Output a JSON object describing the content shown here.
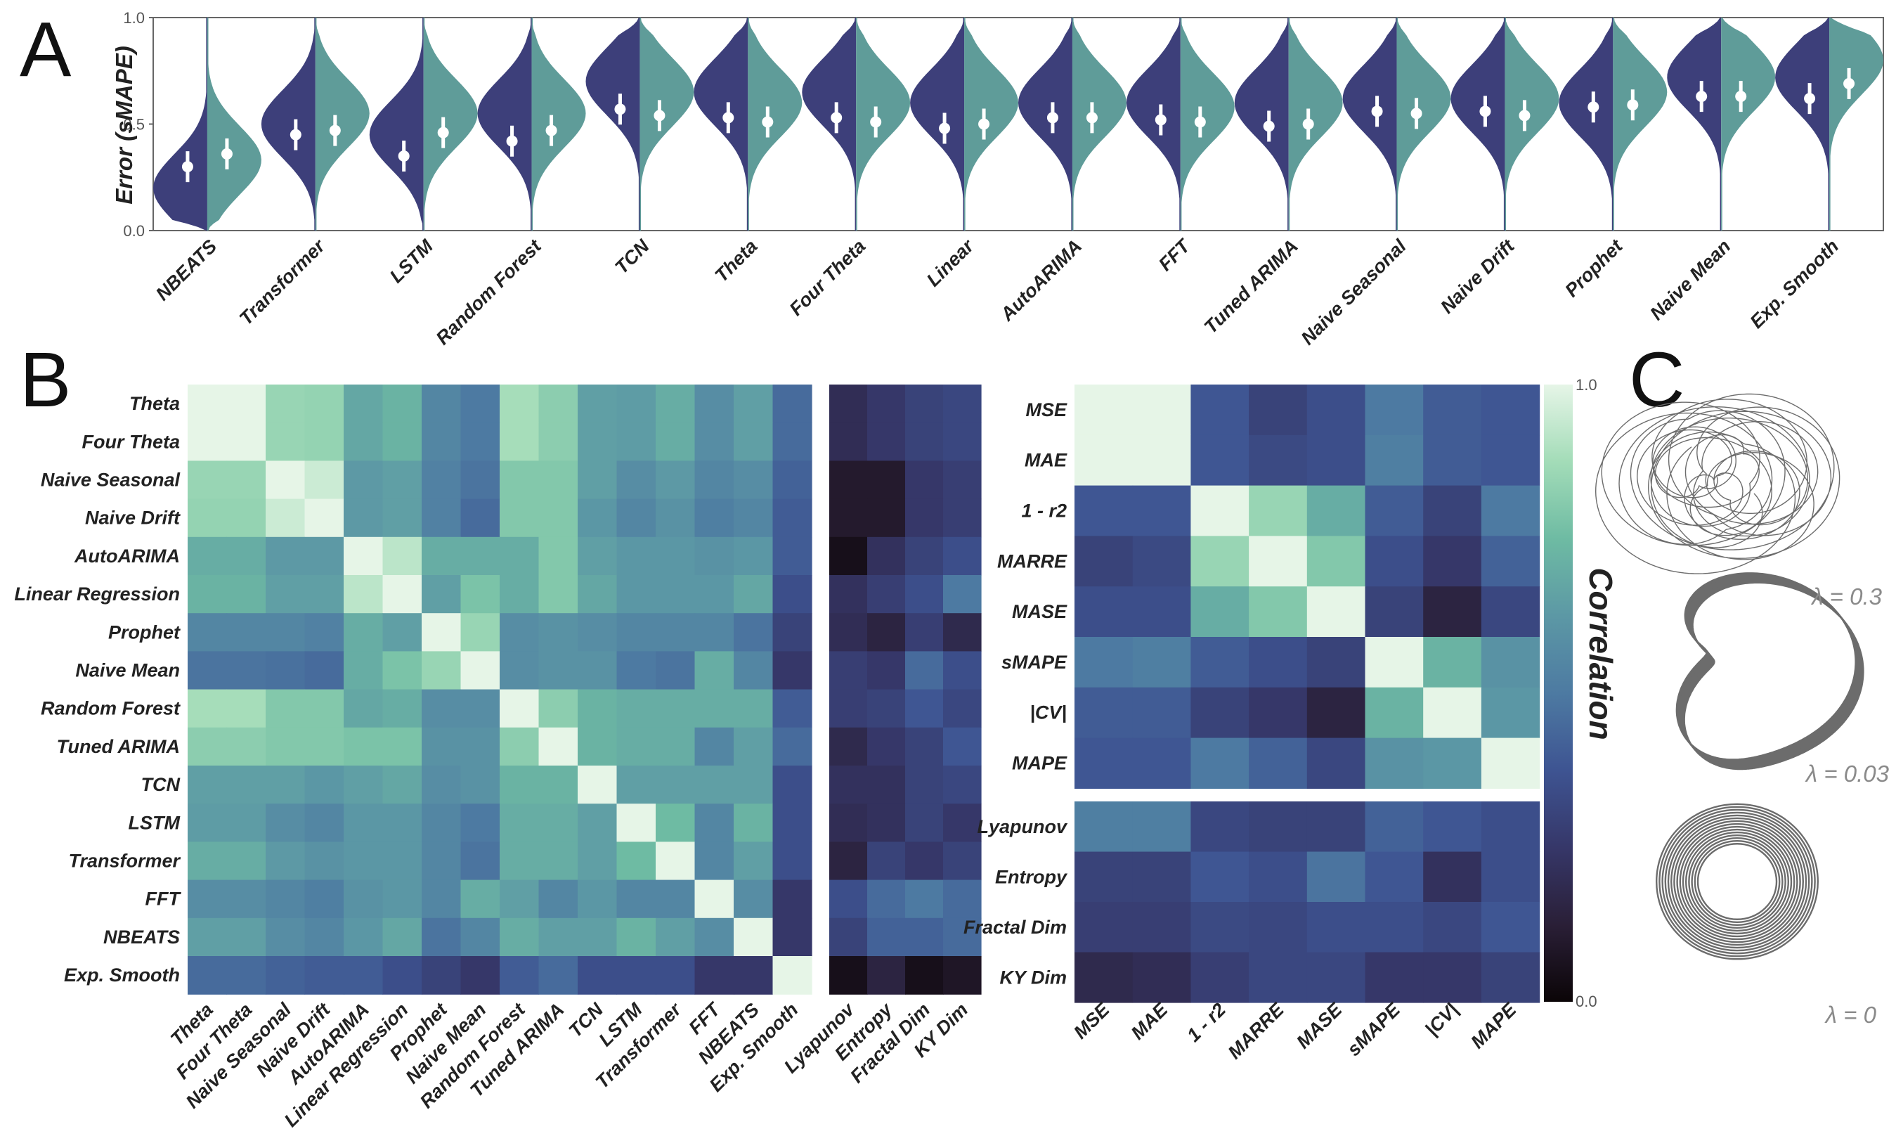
{
  "panels": {
    "a": "A",
    "b": "B",
    "c": "C"
  },
  "colors": {
    "left_violin": "#3d3f7a",
    "right_violin": "#5f9c99",
    "point": "#ffffff",
    "cmap": [
      "#0b0507",
      "#2a1f37",
      "#363769",
      "#3e5492",
      "#4d7aa2",
      "#5c98a5",
      "#6ebba3",
      "#a3dcb8",
      "#e6f5e7"
    ]
  },
  "violin": {
    "ylabel": "Error (sMAPE)",
    "ylim": [
      0.0,
      1.0
    ],
    "yticks": [
      "0.0",
      "0.5",
      "1.0"
    ],
    "models": [
      {
        "name": "NBEATS",
        "l": 0.3,
        "r": 0.36,
        "lp": 0.2,
        "rp": 0.33
      },
      {
        "name": "Transformer",
        "l": 0.45,
        "r": 0.47,
        "lp": 0.5,
        "rp": 0.55
      },
      {
        "name": "LSTM",
        "l": 0.35,
        "r": 0.46,
        "lp": 0.45,
        "rp": 0.55
      },
      {
        "name": "Random Forest",
        "l": 0.42,
        "r": 0.47,
        "lp": 0.55,
        "rp": 0.55
      },
      {
        "name": "TCN",
        "l": 0.57,
        "r": 0.54,
        "lp": 0.7,
        "rp": 0.65
      },
      {
        "name": "Theta",
        "l": 0.53,
        "r": 0.51,
        "lp": 0.65,
        "rp": 0.6
      },
      {
        "name": "Four Theta",
        "l": 0.53,
        "r": 0.51,
        "lp": 0.65,
        "rp": 0.6
      },
      {
        "name": "Linear",
        "l": 0.48,
        "r": 0.5,
        "lp": 0.6,
        "rp": 0.6
      },
      {
        "name": "AutoARIMA",
        "l": 0.53,
        "r": 0.53,
        "lp": 0.6,
        "rp": 0.6
      },
      {
        "name": "FFT",
        "l": 0.52,
        "r": 0.51,
        "lp": 0.6,
        "rp": 0.58
      },
      {
        "name": "Tuned ARIMA",
        "l": 0.49,
        "r": 0.5,
        "lp": 0.6,
        "rp": 0.6
      },
      {
        "name": "Naive Seasonal",
        "l": 0.56,
        "r": 0.55,
        "lp": 0.62,
        "rp": 0.62
      },
      {
        "name": "Naive Drift",
        "l": 0.56,
        "r": 0.54,
        "lp": 0.62,
        "rp": 0.62
      },
      {
        "name": "Prophet",
        "l": 0.58,
        "r": 0.59,
        "lp": 0.6,
        "rp": 0.65
      },
      {
        "name": "Naive Mean",
        "l": 0.63,
        "r": 0.63,
        "lp": 0.72,
        "rp": 0.72
      },
      {
        "name": "Exp. Smooth",
        "l": 0.62,
        "r": 0.69,
        "lp": 0.72,
        "rp": 0.8
      }
    ]
  },
  "heatmap_models": {
    "rows": [
      "Theta",
      "Four Theta",
      "Naive Seasonal",
      "Naive Drift",
      "AutoARIMA",
      "Linear Regression",
      "Prophet",
      "Naive Mean",
      "Random Forest",
      "Tuned ARIMA",
      "TCN",
      "LSTM",
      "Transformer",
      "FFT",
      "NBEATS",
      "Exp. Smooth"
    ],
    "cols": [
      "Theta",
      "Four Theta",
      "Naive Seasonal",
      "Naive Drift",
      "AutoARIMA",
      "Linear Regression",
      "Prophet",
      "Naive Mean",
      "Random Forest",
      "Tuned ARIMA",
      "TCN",
      "LSTM",
      "Transformer",
      "FFT",
      "NBEATS",
      "Exp. Smooth"
    ],
    "values": [
      [
        1.0,
        1.0,
        0.85,
        0.84,
        0.68,
        0.72,
        0.55,
        0.5,
        0.88,
        0.82,
        0.65,
        0.64,
        0.7,
        0.58,
        0.65,
        0.45
      ],
      [
        1.0,
        1.0,
        0.85,
        0.84,
        0.68,
        0.72,
        0.55,
        0.5,
        0.88,
        0.82,
        0.65,
        0.64,
        0.7,
        0.58,
        0.65,
        0.45
      ],
      [
        0.85,
        0.85,
        1.0,
        0.95,
        0.63,
        0.65,
        0.53,
        0.48,
        0.8,
        0.8,
        0.65,
        0.58,
        0.63,
        0.55,
        0.58,
        0.42
      ],
      [
        0.84,
        0.84,
        0.95,
        1.0,
        0.63,
        0.65,
        0.53,
        0.45,
        0.8,
        0.8,
        0.62,
        0.55,
        0.6,
        0.52,
        0.55,
        0.4
      ],
      [
        0.7,
        0.7,
        0.63,
        0.63,
        1.0,
        0.92,
        0.7,
        0.7,
        0.7,
        0.8,
        0.65,
        0.62,
        0.62,
        0.6,
        0.62,
        0.4
      ],
      [
        0.72,
        0.72,
        0.65,
        0.65,
        0.92,
        1.0,
        0.65,
        0.78,
        0.7,
        0.8,
        0.68,
        0.62,
        0.62,
        0.62,
        0.68,
        0.35
      ],
      [
        0.55,
        0.55,
        0.55,
        0.53,
        0.7,
        0.65,
        1.0,
        0.85,
        0.58,
        0.6,
        0.58,
        0.55,
        0.55,
        0.55,
        0.48,
        0.3
      ],
      [
        0.48,
        0.48,
        0.47,
        0.45,
        0.7,
        0.78,
        0.85,
        1.0,
        0.58,
        0.6,
        0.6,
        0.5,
        0.48,
        0.7,
        0.55,
        0.25
      ],
      [
        0.88,
        0.88,
        0.8,
        0.8,
        0.68,
        0.7,
        0.58,
        0.58,
        1.0,
        0.82,
        0.72,
        0.7,
        0.7,
        0.7,
        0.7,
        0.4
      ],
      [
        0.82,
        0.82,
        0.8,
        0.8,
        0.78,
        0.78,
        0.6,
        0.6,
        0.82,
        1.0,
        0.72,
        0.7,
        0.7,
        0.55,
        0.65,
        0.45
      ],
      [
        0.65,
        0.65,
        0.65,
        0.62,
        0.65,
        0.68,
        0.58,
        0.6,
        0.72,
        0.72,
        1.0,
        0.65,
        0.65,
        0.65,
        0.65,
        0.35
      ],
      [
        0.64,
        0.64,
        0.58,
        0.55,
        0.62,
        0.62,
        0.55,
        0.5,
        0.7,
        0.7,
        0.65,
        1.0,
        0.75,
        0.55,
        0.72,
        0.35
      ],
      [
        0.7,
        0.7,
        0.63,
        0.6,
        0.62,
        0.62,
        0.55,
        0.48,
        0.7,
        0.7,
        0.65,
        0.75,
        1.0,
        0.55,
        0.65,
        0.35
      ],
      [
        0.58,
        0.58,
        0.55,
        0.52,
        0.6,
        0.62,
        0.55,
        0.7,
        0.65,
        0.55,
        0.62,
        0.55,
        0.55,
        1.0,
        0.58,
        0.25
      ],
      [
        0.65,
        0.65,
        0.58,
        0.55,
        0.62,
        0.68,
        0.48,
        0.55,
        0.7,
        0.65,
        0.65,
        0.72,
        0.65,
        0.58,
        1.0,
        0.25
      ],
      [
        0.45,
        0.45,
        0.42,
        0.4,
        0.4,
        0.35,
        0.3,
        0.25,
        0.4,
        0.45,
        0.35,
        0.35,
        0.35,
        0.25,
        0.25,
        1.0
      ]
    ]
  },
  "heatmap_model_props": {
    "cols": [
      "Lyapunov",
      "Entropy",
      "Fractal Dim",
      "KY Dim"
    ],
    "values": [
      [
        0.2,
        0.25,
        0.3,
        0.32
      ],
      [
        0.2,
        0.25,
        0.3,
        0.32
      ],
      [
        0.1,
        0.1,
        0.25,
        0.28
      ],
      [
        0.1,
        0.1,
        0.25,
        0.28
      ],
      [
        0.05,
        0.22,
        0.3,
        0.35
      ],
      [
        0.22,
        0.28,
        0.35,
        0.5
      ],
      [
        0.2,
        0.15,
        0.28,
        0.18
      ],
      [
        0.28,
        0.25,
        0.45,
        0.35
      ],
      [
        0.28,
        0.3,
        0.38,
        0.32
      ],
      [
        0.18,
        0.25,
        0.3,
        0.38
      ],
      [
        0.22,
        0.22,
        0.3,
        0.32
      ],
      [
        0.2,
        0.22,
        0.3,
        0.25
      ],
      [
        0.15,
        0.3,
        0.25,
        0.3
      ],
      [
        0.35,
        0.45,
        0.5,
        0.45
      ],
      [
        0.3,
        0.42,
        0.42,
        0.45
      ],
      [
        0.05,
        0.15,
        0.05,
        0.08
      ]
    ]
  },
  "heatmap_metrics": {
    "rows": [
      "MSE",
      "MAE",
      "1 - r2",
      "MARRE",
      "MASE",
      "sMAPE",
      "|CV|",
      "MAPE"
    ],
    "cols": [
      "MSE",
      "MAE",
      "1 - r2",
      "MARRE",
      "MASE",
      "sMAPE",
      "|CV|",
      "MAPE"
    ],
    "values": [
      [
        1.0,
        1.0,
        0.38,
        0.3,
        0.35,
        0.5,
        0.4,
        0.38
      ],
      [
        1.0,
        1.0,
        0.38,
        0.33,
        0.35,
        0.52,
        0.4,
        0.38
      ],
      [
        0.38,
        0.38,
        1.0,
        0.85,
        0.7,
        0.4,
        0.3,
        0.5
      ],
      [
        0.3,
        0.33,
        0.85,
        1.0,
        0.8,
        0.35,
        0.25,
        0.42
      ],
      [
        0.35,
        0.35,
        0.7,
        0.8,
        1.0,
        0.3,
        0.15,
        0.32
      ],
      [
        0.5,
        0.52,
        0.4,
        0.35,
        0.3,
        1.0,
        0.72,
        0.6
      ],
      [
        0.4,
        0.4,
        0.3,
        0.25,
        0.15,
        0.72,
        1.0,
        0.62
      ],
      [
        0.38,
        0.38,
        0.5,
        0.42,
        0.32,
        0.6,
        0.62,
        1.0
      ]
    ]
  },
  "heatmap_metric_props": {
    "rows": [
      "Lyapunov",
      "Entropy",
      "Fractal Dim",
      "KY Dim"
    ],
    "values": [
      [
        0.52,
        0.52,
        0.32,
        0.3,
        0.3,
        0.42,
        0.38,
        0.35
      ],
      [
        0.3,
        0.3,
        0.38,
        0.35,
        0.48,
        0.38,
        0.22,
        0.35
      ],
      [
        0.28,
        0.28,
        0.33,
        0.32,
        0.35,
        0.35,
        0.32,
        0.38
      ],
      [
        0.18,
        0.2,
        0.28,
        0.32,
        0.32,
        0.25,
        0.25,
        0.3
      ]
    ]
  },
  "colorbar": {
    "title": "Correlation",
    "max_label": "1.0",
    "min_label": "0.0",
    "range": [
      0.0,
      1.0
    ]
  },
  "attractors": [
    {
      "name": "chaotic-attractor",
      "label": "λ = 0.3"
    },
    {
      "name": "periodic-attractor",
      "label": "λ = 0.03"
    },
    {
      "name": "limit-cycle-attractor",
      "label": "λ = 0"
    }
  ]
}
